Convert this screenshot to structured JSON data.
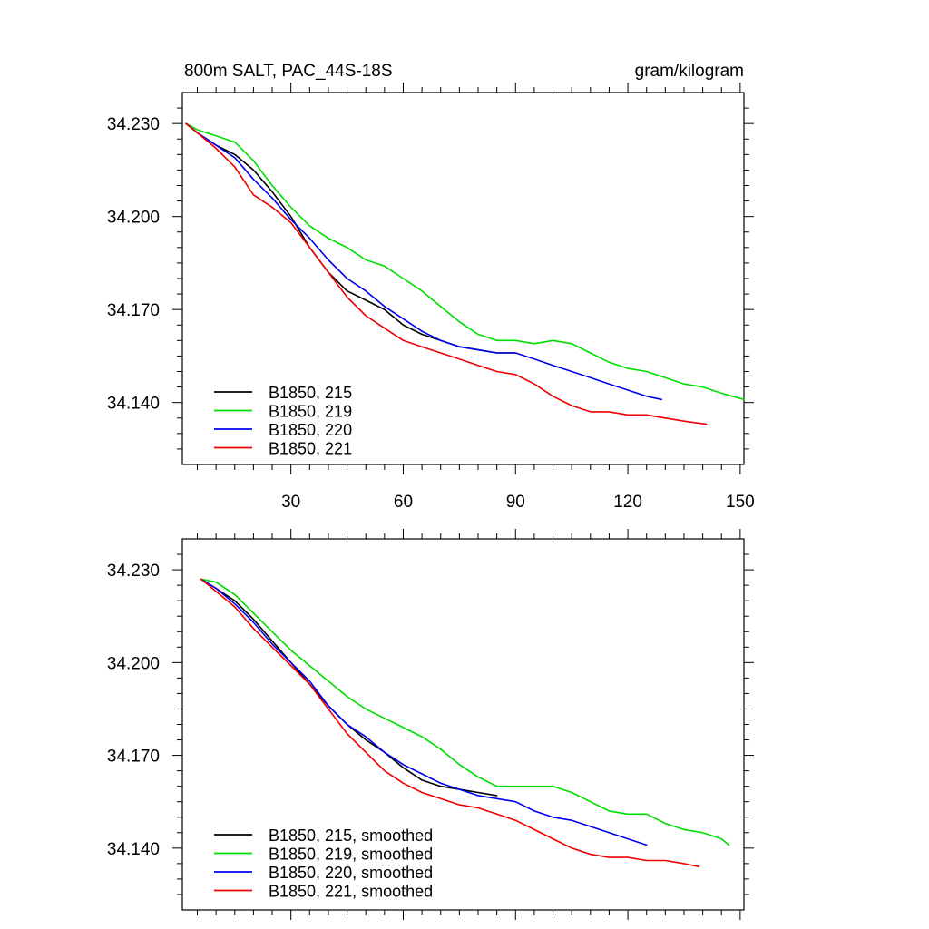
{
  "chart_data": [
    {
      "type": "line",
      "title_left": "800m SALT, PAC_44S-18S",
      "title_right": "gram/kilogram",
      "xlim": [
        1,
        151
      ],
      "ylim": [
        34.12,
        34.24
      ],
      "x_ticks": [
        30,
        60,
        90,
        120,
        150
      ],
      "x_tick_labels": [
        "30",
        "60",
        "90",
        "120",
        "150"
      ],
      "y_ticks": [
        34.23,
        34.2,
        34.17,
        34.14
      ],
      "y_tick_labels": [
        "34.230",
        "34.200",
        "34.170",
        "34.140"
      ],
      "series": [
        {
          "name": "B1850, 215",
          "color": "#000000",
          "x": [
            2,
            5,
            10,
            15,
            20,
            25,
            30,
            35,
            40,
            45,
            50,
            55,
            60,
            65,
            70,
            75,
            80,
            85,
            90
          ],
          "y": [
            34.23,
            34.227,
            34.223,
            34.22,
            34.215,
            34.208,
            34.2,
            34.19,
            34.182,
            34.176,
            34.173,
            34.17,
            34.165,
            34.162,
            34.16,
            34.158,
            34.157,
            34.156,
            34.156
          ]
        },
        {
          "name": "B1850, 219",
          "color": "#00dd00",
          "x": [
            2,
            5,
            10,
            15,
            20,
            25,
            30,
            35,
            40,
            45,
            50,
            55,
            60,
            65,
            70,
            75,
            80,
            85,
            90,
            95,
            100,
            105,
            110,
            115,
            120,
            125,
            130,
            135,
            140,
            145,
            151
          ],
          "y": [
            34.23,
            34.228,
            34.226,
            34.224,
            34.218,
            34.21,
            34.203,
            34.197,
            34.193,
            34.19,
            34.186,
            34.184,
            34.18,
            34.176,
            34.171,
            34.166,
            34.162,
            34.16,
            34.16,
            34.159,
            34.16,
            34.159,
            34.156,
            34.153,
            34.151,
            34.15,
            34.148,
            34.146,
            34.145,
            34.143,
            34.141
          ]
        },
        {
          "name": "B1850, 220",
          "color": "#0000ee",
          "x": [
            2,
            5,
            10,
            15,
            20,
            25,
            30,
            35,
            40,
            45,
            50,
            55,
            60,
            65,
            70,
            75,
            80,
            85,
            90,
            95,
            100,
            105,
            110,
            115,
            120,
            125,
            129
          ],
          "y": [
            34.23,
            34.227,
            34.223,
            34.219,
            34.212,
            34.206,
            34.199,
            34.193,
            34.186,
            34.18,
            34.176,
            34.171,
            34.167,
            34.163,
            34.16,
            34.158,
            34.157,
            34.156,
            34.156,
            34.154,
            34.152,
            34.15,
            34.148,
            34.146,
            34.144,
            34.142,
            34.141
          ]
        },
        {
          "name": "B1850, 221",
          "color": "#ee0000",
          "x": [
            2,
            5,
            10,
            15,
            20,
            25,
            30,
            35,
            40,
            45,
            50,
            55,
            60,
            65,
            70,
            75,
            80,
            85,
            90,
            95,
            100,
            105,
            110,
            115,
            120,
            125,
            130,
            135,
            141
          ],
          "y": [
            34.23,
            34.227,
            34.222,
            34.216,
            34.207,
            34.203,
            34.198,
            34.19,
            34.182,
            34.174,
            34.168,
            34.164,
            34.16,
            34.158,
            34.156,
            34.154,
            34.152,
            34.15,
            34.149,
            34.146,
            34.142,
            34.139,
            34.137,
            34.137,
            34.136,
            34.136,
            34.135,
            34.134,
            34.133
          ]
        }
      ]
    },
    {
      "type": "line",
      "xlim": [
        1,
        151
      ],
      "ylim": [
        34.12,
        34.24
      ],
      "x_ticks": [
        30,
        60,
        90,
        120,
        150
      ],
      "y_ticks": [
        34.23,
        34.2,
        34.17,
        34.14
      ],
      "y_tick_labels": [
        "34.230",
        "34.200",
        "34.170",
        "34.140"
      ],
      "series": [
        {
          "name": "B1850, 215, smoothed",
          "color": "#000000",
          "x": [
            6,
            10,
            15,
            20,
            25,
            30,
            35,
            40,
            45,
            50,
            55,
            60,
            65,
            70,
            75,
            80,
            85
          ],
          "y": [
            34.227,
            34.224,
            34.22,
            34.214,
            34.207,
            34.2,
            34.193,
            34.186,
            34.18,
            34.175,
            34.171,
            34.166,
            34.162,
            34.16,
            34.159,
            34.158,
            34.157
          ]
        },
        {
          "name": "B1850, 219, smoothed",
          "color": "#00dd00",
          "x": [
            6,
            10,
            15,
            20,
            25,
            30,
            35,
            40,
            45,
            50,
            55,
            60,
            65,
            70,
            75,
            80,
            85,
            90,
            95,
            100,
            105,
            110,
            115,
            120,
            125,
            130,
            135,
            140,
            145,
            147
          ],
          "y": [
            34.227,
            34.226,
            34.222,
            34.216,
            34.21,
            34.204,
            34.199,
            34.194,
            34.189,
            34.185,
            34.182,
            34.179,
            34.176,
            34.172,
            34.167,
            34.163,
            34.16,
            34.16,
            34.16,
            34.16,
            34.158,
            34.155,
            34.152,
            34.151,
            34.151,
            34.148,
            34.146,
            34.145,
            34.143,
            34.141
          ]
        },
        {
          "name": "B1850, 220, smoothed",
          "color": "#0000ee",
          "x": [
            6,
            10,
            15,
            20,
            25,
            30,
            35,
            40,
            45,
            50,
            55,
            60,
            65,
            70,
            75,
            80,
            85,
            90,
            95,
            100,
            105,
            110,
            115,
            120,
            125
          ],
          "y": [
            34.227,
            34.224,
            34.219,
            34.213,
            34.206,
            34.2,
            34.194,
            34.186,
            34.18,
            34.176,
            34.171,
            34.167,
            34.164,
            34.161,
            34.159,
            34.157,
            34.156,
            34.155,
            34.152,
            34.15,
            34.149,
            34.147,
            34.145,
            34.143,
            34.141
          ]
        },
        {
          "name": "B1850, 221, smoothed",
          "color": "#ee0000",
          "x": [
            6,
            10,
            15,
            20,
            25,
            30,
            35,
            40,
            45,
            50,
            55,
            60,
            65,
            70,
            75,
            80,
            85,
            90,
            95,
            100,
            105,
            110,
            115,
            120,
            125,
            130,
            135,
            139
          ],
          "y": [
            34.227,
            34.223,
            34.218,
            34.211,
            34.205,
            34.199,
            34.193,
            34.185,
            34.177,
            34.171,
            34.165,
            34.161,
            34.158,
            34.156,
            34.154,
            34.153,
            34.151,
            34.149,
            34.146,
            34.143,
            34.14,
            34.138,
            34.137,
            34.137,
            34.136,
            34.136,
            34.135,
            34.134
          ]
        }
      ]
    }
  ]
}
